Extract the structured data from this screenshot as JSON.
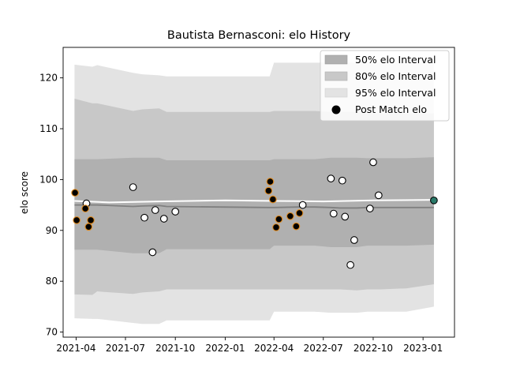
{
  "chart_data": {
    "type": "scatter",
    "title": "Bautista Bernasconi: elo History",
    "xlabel": "",
    "ylabel": "elo score",
    "xlim": [
      "2021-03-08",
      "2023-02-28"
    ],
    "ylim": [
      69,
      126
    ],
    "xticks": [
      "2021-04-01",
      "2021-07-01",
      "2021-10-01",
      "2022-01-01",
      "2022-04-01",
      "2022-07-01",
      "2022-10-01",
      "2023-01-01"
    ],
    "xtick_labels": [
      "2021-04",
      "2021-07",
      "2021-10",
      "2022-01",
      "2022-04",
      "2022-07",
      "2022-10",
      "2023-01"
    ],
    "yticks": [
      70,
      80,
      90,
      100,
      110,
      120
    ],
    "ytick_labels": [
      "70",
      "80",
      "90",
      "100",
      "110",
      "120"
    ],
    "legend": {
      "position": "top-right",
      "entries": [
        "50% elo Interval",
        "80% elo Interval",
        "95% elo Interval",
        "Post Match elo"
      ]
    },
    "colors": {
      "band_50": "#b0b0b0",
      "band_80": "#c8c8c8",
      "band_95": "#e3e3e3",
      "mean_line": "#808080",
      "trend_line": "#ffffff",
      "point_fill": "#ffffff",
      "point_edge": "#000000",
      "highlight_fill": "#000000",
      "highlight_edge": "#e08a1e",
      "last_point": "#2a7a6a"
    },
    "intervals": {
      "x": [
        "2021-03-29",
        "2021-05-01",
        "2021-05-10",
        "2021-07-15",
        "2021-08-01",
        "2021-09-01",
        "2021-09-15",
        "2022-03-24",
        "2022-04-01",
        "2022-05-15",
        "2022-06-15",
        "2022-07-15",
        "2022-08-01",
        "2022-09-01",
        "2022-09-20",
        "2022-10-15",
        "2022-12-01",
        "2023-01-21"
      ],
      "mean": [
        95.0,
        95.0,
        95.0,
        94.7,
        94.8,
        94.9,
        94.7,
        94.5,
        94.5,
        94.6,
        94.6,
        94.5,
        94.4,
        94.4,
        94.5,
        94.5,
        94.5,
        94.5
      ],
      "p50_low": [
        86.2,
        86.2,
        86.2,
        85.5,
        85.5,
        85.5,
        86.3,
        86.3,
        87.0,
        87.0,
        87.0,
        86.7,
        86.7,
        86.7,
        87.0,
        87.0,
        87.0,
        87.2
      ],
      "p50_high": [
        104.0,
        104.0,
        104.0,
        104.3,
        104.3,
        104.3,
        103.8,
        103.8,
        104.0,
        104.0,
        104.0,
        104.3,
        104.3,
        104.3,
        104.2,
        104.2,
        104.2,
        104.4
      ],
      "p80_low": [
        77.4,
        77.3,
        78.0,
        77.5,
        77.8,
        78.0,
        78.4,
        78.4,
        78.4,
        78.4,
        78.4,
        78.4,
        78.4,
        78.2,
        78.4,
        78.4,
        78.6,
        79.4
      ],
      "p80_high": [
        115.9,
        115.0,
        115.0,
        113.5,
        113.8,
        114.0,
        113.3,
        113.3,
        113.5,
        113.5,
        113.5,
        113.3,
        113.3,
        113.3,
        113.0,
        113.0,
        113.0,
        113.0
      ],
      "p95_low": [
        72.7,
        72.6,
        72.6,
        71.8,
        71.6,
        71.6,
        72.3,
        72.3,
        74.0,
        74.0,
        74.0,
        73.8,
        73.8,
        73.8,
        74.0,
        74.0,
        74.0,
        75.0
      ],
      "p95_high": [
        122.6,
        122.2,
        122.5,
        121.0,
        120.7,
        120.5,
        120.3,
        120.3,
        123.0,
        123.0,
        123.0,
        123.0,
        123.0,
        123.0,
        123.0,
        123.0,
        123.0,
        123.0
      ]
    },
    "trend": {
      "x": [
        "2021-03-29",
        "2021-06-01",
        "2021-09-01",
        "2022-01-01",
        "2022-04-01",
        "2022-07-01",
        "2022-10-01",
        "2023-01-21"
      ],
      "y": [
        95.8,
        95.5,
        95.7,
        95.9,
        95.8,
        95.7,
        95.9,
        96.0
      ]
    },
    "series": [
      {
        "name": "Post Match elo",
        "x": [
          "2021-04-20",
          "2021-07-15",
          "2021-08-05",
          "2021-08-20",
          "2021-08-25",
          "2021-09-10",
          "2021-10-01",
          "2022-05-24",
          "2022-07-15",
          "2022-07-20",
          "2022-08-05",
          "2022-08-10",
          "2022-08-20",
          "2022-08-27",
          "2022-09-25",
          "2022-10-01",
          "2022-10-11"
        ],
        "y": [
          95.3,
          98.5,
          92.5,
          85.7,
          94.0,
          92.3,
          93.7,
          95.0,
          100.2,
          93.3,
          99.8,
          92.7,
          83.2,
          88.1,
          94.3,
          103.4,
          96.9
        ],
        "style": "open"
      },
      {
        "name": "",
        "x": [
          "2021-03-30",
          "2021-04-02",
          "2021-04-18",
          "2021-04-24",
          "2021-04-28",
          "2022-03-22",
          "2022-03-25",
          "2022-03-30",
          "2022-04-05",
          "2022-04-10",
          "2022-05-01",
          "2022-05-12",
          "2022-05-18"
        ],
        "y": [
          97.4,
          92.0,
          94.3,
          90.7,
          92.0,
          97.8,
          99.6,
          96.1,
          90.6,
          92.2,
          92.8,
          90.8,
          93.4
        ],
        "style": "highlight"
      },
      {
        "name": "",
        "x": [
          "2023-01-21"
        ],
        "y": [
          95.9
        ],
        "style": "last"
      }
    ]
  }
}
